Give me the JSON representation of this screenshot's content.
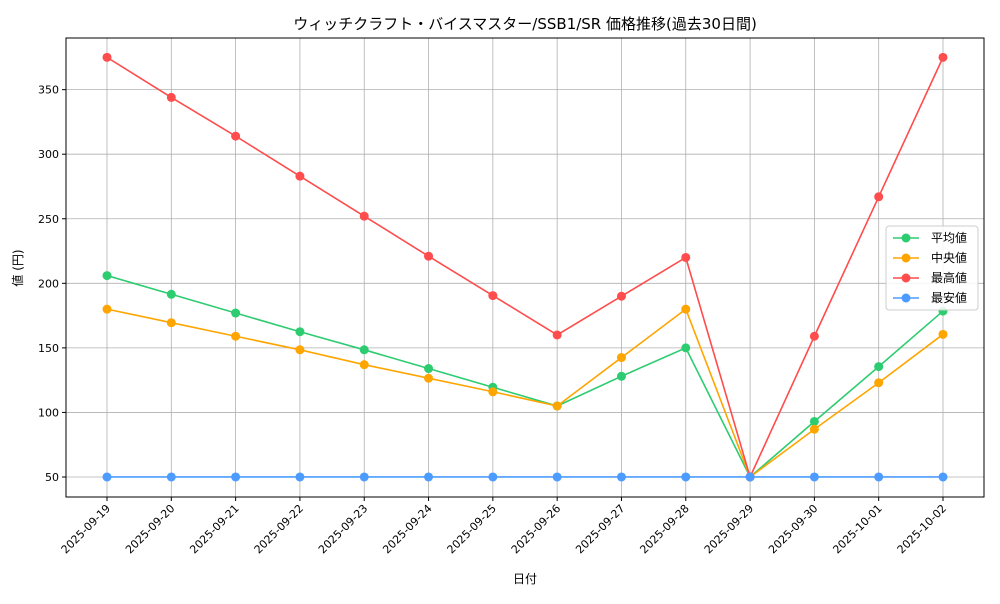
{
  "chart_data": {
    "type": "line",
    "title": "ウィッチクラフト・バイスマスター/SSB1/SR 価格推移(過去30日間)",
    "xlabel": "日付",
    "ylabel": "値 (円)",
    "ylim": [
      34.5,
      390
    ],
    "yticks": [
      50,
      100,
      150,
      200,
      250,
      300,
      350
    ],
    "grid": true,
    "legend_position": "center-right",
    "categories": [
      "2025-09-19",
      "2025-09-20",
      "2025-09-21",
      "2025-09-22",
      "2025-09-23",
      "2025-09-24",
      "2025-09-25",
      "2025-09-26",
      "2025-09-27",
      "2025-09-28",
      "2025-09-29",
      "2025-09-30",
      "2025-10-01",
      "2025-10-02"
    ],
    "series": [
      {
        "name": "平均値",
        "color": "#2ecc71",
        "values": [
          206,
          191.5,
          177,
          162.5,
          148.5,
          134,
          119.5,
          105,
          128,
          150,
          50,
          93,
          135.5,
          178.5
        ]
      },
      {
        "name": "中央値",
        "color": "#ffa500",
        "values": [
          180,
          169.5,
          159,
          148.5,
          137,
          126.5,
          116,
          105,
          142.5,
          180,
          50,
          87,
          123,
          160.5
        ]
      },
      {
        "name": "最高値",
        "color": "#ff4c4c",
        "values": [
          375,
          344,
          314,
          283,
          252,
          221,
          190.5,
          160,
          190,
          220,
          50,
          159,
          267,
          375
        ]
      },
      {
        "name": "最安値",
        "color": "#4c9bff",
        "values": [
          50,
          50,
          50,
          50,
          50,
          50,
          50,
          50,
          50,
          50,
          50,
          50,
          50,
          50
        ]
      }
    ]
  }
}
